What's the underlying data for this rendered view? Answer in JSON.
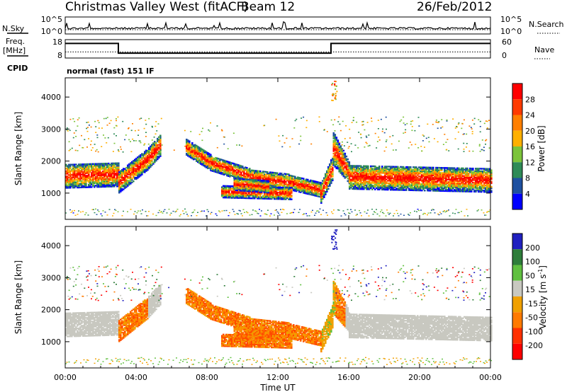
{
  "header": {
    "title": "Christmas Valley West (fitACF)",
    "beam": "Beam 12",
    "date": "26/Feb/2012"
  },
  "left_labels": {
    "nsky": "N.Sky",
    "freq_line1": "Freq.",
    "freq_line2": "[MHz]",
    "cpid": "CPID"
  },
  "right_labels": {
    "nsearch": "N.Search",
    "nave": "Nave"
  },
  "cpid_text": "normal (fast) 151 IF",
  "colors": {
    "power": [
      "#0000ff",
      "#1e50a0",
      "#2e8b57",
      "#7cc43a",
      "#ffb000",
      "#ff7f00",
      "#ff3a00",
      "#ff0000"
    ],
    "velocity": [
      "#2020c0",
      "#2e7d3a",
      "#60c040",
      "#c8c8c0",
      "#f0a000",
      "#ff7a00",
      "#ff3000",
      "#ff0000"
    ],
    "ground_scatter": "#c8c8c0"
  },
  "chart_data": [
    {
      "type": "line",
      "name_left": "N.Sky",
      "name_right": "N.Search",
      "x_range": [
        "00:00",
        "24:00"
      ],
      "y_left_ticks": [
        "10^5",
        "10^0"
      ],
      "y_right_ticks": [
        "10^5",
        "10^0"
      ]
    },
    {
      "type": "line",
      "name_left": "Freq. [MHz]",
      "name_right": "Nave",
      "y_left_ticks": [
        "18",
        "8"
      ],
      "y_right_ticks": [
        "60",
        "0"
      ],
      "freq_steps": [
        {
          "t_start": 0.0,
          "t_end": 3.0,
          "freq": 16.5
        },
        {
          "t_start": 3.0,
          "t_end": 15.0,
          "freq": 10.2
        },
        {
          "t_start": 15.0,
          "t_end": 24.0,
          "freq": 16.5
        }
      ],
      "nave_level": 20
    },
    {
      "type": "heatmap",
      "ylabel": "Slant Range [km]",
      "y_ticks": [
        "4000",
        "3000",
        "2000",
        "1000"
      ],
      "y_tick_values": [
        4000,
        3000,
        2000,
        1000
      ],
      "ylim": [
        180,
        4600
      ],
      "colorbar_label": "Power [dB]",
      "colorbar_ticks": [
        "28",
        "24",
        "20",
        "16",
        "12",
        "8",
        "4"
      ],
      "colorbar_values": [
        28,
        24,
        20,
        16,
        12,
        8,
        4
      ]
    },
    {
      "type": "heatmap",
      "ylabel": "Slant Range [km]",
      "y_ticks": [
        "4000",
        "3000",
        "2000",
        "1000"
      ],
      "y_tick_values": [
        4000,
        3000,
        2000,
        1000
      ],
      "ylim": [
        180,
        4600
      ],
      "colorbar_label_main": "Velocity [m s",
      "colorbar_label_sup": "-1",
      "colorbar_label_end": "]",
      "colorbar_ticks": [
        "200",
        "100",
        "50",
        "15",
        "-15",
        "-50",
        "-100",
        "-200"
      ],
      "colorbar_values": [
        200,
        100,
        50,
        15,
        -15,
        -50,
        -100,
        -200
      ]
    }
  ],
  "x_axis": {
    "label": "Time UT",
    "ticks": [
      "00:00",
      "04:00",
      "08:00",
      "12:00",
      "16:00",
      "20:00",
      "00:00"
    ],
    "tick_hours": [
      0,
      4,
      8,
      12,
      16,
      20,
      24
    ]
  }
}
